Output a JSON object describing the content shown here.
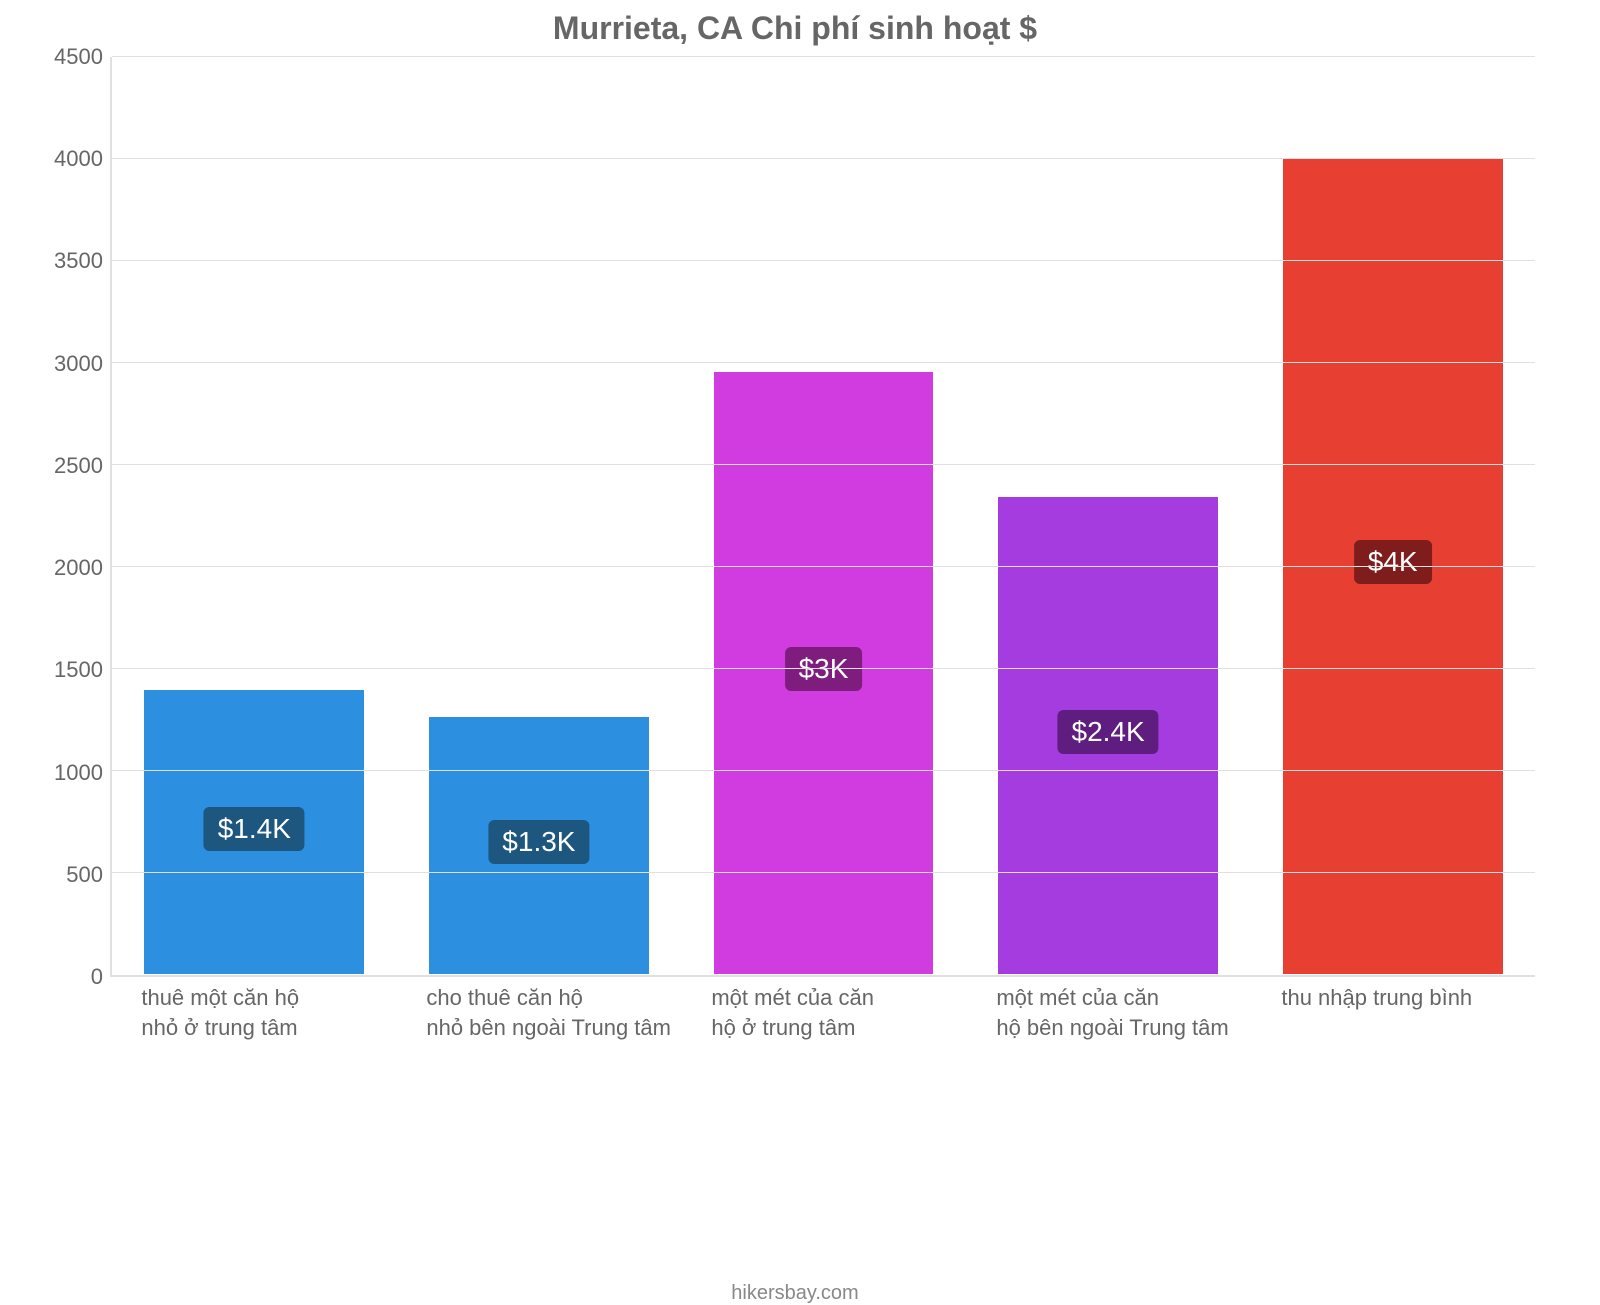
{
  "chart": {
    "type": "bar",
    "title": "Murrieta, CA Chi phí sinh hoạt $",
    "title_color": "#666666",
    "title_fontsize": 32,
    "background_color": "#ffffff",
    "axis_line_color": "#e0e0e0",
    "grid_color": "#e0e0e0",
    "tick_label_color": "#666666",
    "tick_fontsize": 22,
    "x_label_fontsize": 22,
    "x_label_color": "#666666",
    "ylim_min": 0,
    "ylim_max": 4500,
    "ytick_step": 500,
    "yticks": [
      0,
      500,
      1000,
      1500,
      2000,
      2500,
      3000,
      3500,
      4000,
      4500
    ],
    "bar_width_ratio": 0.78,
    "categories": [
      "thuê một căn hộ\nnhỏ ở trung tâm",
      "cho thuê căn hộ\nnhỏ bên ngoài Trung tâm",
      "một mét của căn\nhộ ở trung tâm",
      "một mét của căn\nhộ bên ngoài Trung tâm",
      "thu nhập trung bình"
    ],
    "values": [
      1400,
      1270,
      2960,
      2350,
      4010
    ],
    "value_labels": [
      "$1.4K",
      "$1.3K",
      "$3K",
      "$2.4K",
      "$4K"
    ],
    "bar_colors": [
      "#2d8fe0",
      "#2d8fe0",
      "#d13ce0",
      "#a53ce0",
      "#e74033"
    ],
    "badge_colors": [
      "#1d567f",
      "#1d567f",
      "#7f1d7f",
      "#5e1d7f",
      "#7f1d1d"
    ],
    "badge_fontsize": 28,
    "footer": "hikersbay.com",
    "footer_color": "#888888",
    "footer_fontsize": 20
  }
}
